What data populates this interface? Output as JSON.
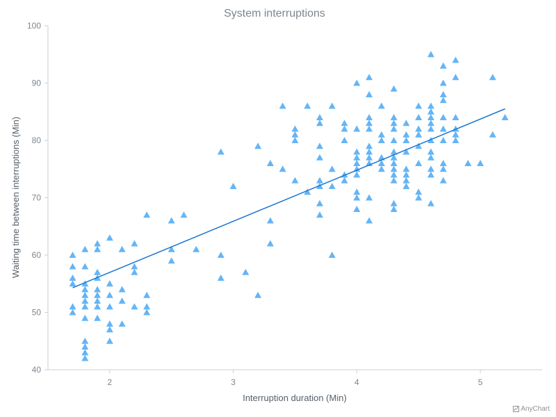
{
  "chart_data": {
    "type": "scatter",
    "title": "System interruptions",
    "xlabel": "Interruption duration (Min)",
    "ylabel": "Waiting time between interruptions (Min)",
    "xlim": [
      1.5,
      5.5
    ],
    "ylim": [
      40,
      100
    ],
    "xticks": [
      2,
      3,
      4,
      5
    ],
    "yticks": [
      40,
      50,
      60,
      70,
      80,
      90,
      100
    ],
    "marker_color": "#64b5f6",
    "trend_color": "#1976d2",
    "trend_line": {
      "x1": 1.7,
      "y1": 54.3,
      "x2": 5.2,
      "y2": 85.5
    },
    "points": [
      [
        1.7,
        60
      ],
      [
        1.7,
        58
      ],
      [
        1.7,
        56
      ],
      [
        1.7,
        55
      ],
      [
        1.7,
        51
      ],
      [
        1.7,
        50
      ],
      [
        1.8,
        61
      ],
      [
        1.8,
        58
      ],
      [
        1.8,
        55
      ],
      [
        1.8,
        54
      ],
      [
        1.8,
        53
      ],
      [
        1.8,
        52
      ],
      [
        1.8,
        51
      ],
      [
        1.8,
        49
      ],
      [
        1.8,
        45
      ],
      [
        1.8,
        44
      ],
      [
        1.8,
        43
      ],
      [
        1.8,
        42
      ],
      [
        1.9,
        62
      ],
      [
        1.9,
        61
      ],
      [
        1.9,
        57
      ],
      [
        1.9,
        56
      ],
      [
        1.9,
        54
      ],
      [
        1.9,
        53
      ],
      [
        1.9,
        52
      ],
      [
        1.9,
        51
      ],
      [
        1.9,
        49
      ],
      [
        2.0,
        63
      ],
      [
        2.0,
        55
      ],
      [
        2.0,
        53
      ],
      [
        2.0,
        51
      ],
      [
        2.0,
        48
      ],
      [
        2.0,
        47
      ],
      [
        2.0,
        45
      ],
      [
        2.1,
        61
      ],
      [
        2.1,
        54
      ],
      [
        2.1,
        52
      ],
      [
        2.1,
        48
      ],
      [
        2.2,
        62
      ],
      [
        2.2,
        58
      ],
      [
        2.2,
        57
      ],
      [
        2.2,
        51
      ],
      [
        2.3,
        67
      ],
      [
        2.3,
        53
      ],
      [
        2.3,
        51
      ],
      [
        2.3,
        50
      ],
      [
        2.5,
        66
      ],
      [
        2.5,
        61
      ],
      [
        2.5,
        59
      ],
      [
        2.6,
        67
      ],
      [
        2.7,
        61
      ],
      [
        2.9,
        78
      ],
      [
        2.9,
        60
      ],
      [
        2.9,
        56
      ],
      [
        3.0,
        72
      ],
      [
        3.1,
        57
      ],
      [
        3.2,
        79
      ],
      [
        3.2,
        53
      ],
      [
        3.3,
        76
      ],
      [
        3.3,
        66
      ],
      [
        3.3,
        62
      ],
      [
        3.4,
        86
      ],
      [
        3.4,
        75
      ],
      [
        3.5,
        82
      ],
      [
        3.5,
        81
      ],
      [
        3.5,
        80
      ],
      [
        3.5,
        73
      ],
      [
        3.6,
        86
      ],
      [
        3.6,
        71
      ],
      [
        3.7,
        84
      ],
      [
        3.7,
        83
      ],
      [
        3.7,
        79
      ],
      [
        3.7,
        77
      ],
      [
        3.7,
        73
      ],
      [
        3.7,
        72
      ],
      [
        3.7,
        69
      ],
      [
        3.7,
        67
      ],
      [
        3.8,
        86
      ],
      [
        3.8,
        75
      ],
      [
        3.8,
        72
      ],
      [
        3.8,
        60
      ],
      [
        3.9,
        83
      ],
      [
        3.9,
        82
      ],
      [
        3.9,
        80
      ],
      [
        3.9,
        74
      ],
      [
        3.9,
        73
      ],
      [
        4.0,
        90
      ],
      [
        4.0,
        82
      ],
      [
        4.0,
        78
      ],
      [
        4.0,
        77
      ],
      [
        4.0,
        76
      ],
      [
        4.0,
        75
      ],
      [
        4.0,
        74
      ],
      [
        4.0,
        71
      ],
      [
        4.0,
        70
      ],
      [
        4.0,
        68
      ],
      [
        4.1,
        91
      ],
      [
        4.1,
        88
      ],
      [
        4.1,
        84
      ],
      [
        4.1,
        83
      ],
      [
        4.1,
        82
      ],
      [
        4.1,
        79
      ],
      [
        4.1,
        78
      ],
      [
        4.1,
        77
      ],
      [
        4.1,
        76
      ],
      [
        4.1,
        70
      ],
      [
        4.1,
        66
      ],
      [
        4.2,
        86
      ],
      [
        4.2,
        81
      ],
      [
        4.2,
        80
      ],
      [
        4.2,
        77
      ],
      [
        4.2,
        76
      ],
      [
        4.2,
        75
      ],
      [
        4.3,
        89
      ],
      [
        4.3,
        84
      ],
      [
        4.3,
        83
      ],
      [
        4.3,
        82
      ],
      [
        4.3,
        80
      ],
      [
        4.3,
        78
      ],
      [
        4.3,
        77
      ],
      [
        4.3,
        76
      ],
      [
        4.3,
        75
      ],
      [
        4.3,
        74
      ],
      [
        4.3,
        73
      ],
      [
        4.3,
        69
      ],
      [
        4.3,
        68
      ],
      [
        4.4,
        83
      ],
      [
        4.4,
        81
      ],
      [
        4.4,
        80
      ],
      [
        4.4,
        78
      ],
      [
        4.4,
        75
      ],
      [
        4.4,
        74
      ],
      [
        4.4,
        73
      ],
      [
        4.4,
        72
      ],
      [
        4.5,
        86
      ],
      [
        4.5,
        84
      ],
      [
        4.5,
        82
      ],
      [
        4.5,
        81
      ],
      [
        4.5,
        79
      ],
      [
        4.5,
        76
      ],
      [
        4.5,
        71
      ],
      [
        4.5,
        70
      ],
      [
        4.6,
        95
      ],
      [
        4.6,
        86
      ],
      [
        4.6,
        85
      ],
      [
        4.6,
        84
      ],
      [
        4.6,
        83
      ],
      [
        4.6,
        82
      ],
      [
        4.6,
        80
      ],
      [
        4.6,
        78
      ],
      [
        4.6,
        77
      ],
      [
        4.6,
        75
      ],
      [
        4.6,
        74
      ],
      [
        4.6,
        69
      ],
      [
        4.7,
        93
      ],
      [
        4.7,
        90
      ],
      [
        4.7,
        88
      ],
      [
        4.7,
        87
      ],
      [
        4.7,
        84
      ],
      [
        4.7,
        82
      ],
      [
        4.7,
        80
      ],
      [
        4.7,
        76
      ],
      [
        4.7,
        75
      ],
      [
        4.7,
        73
      ],
      [
        4.8,
        94
      ],
      [
        4.8,
        91
      ],
      [
        4.8,
        84
      ],
      [
        4.8,
        82
      ],
      [
        4.8,
        81
      ],
      [
        4.8,
        80
      ],
      [
        4.9,
        76
      ],
      [
        5.0,
        76
      ],
      [
        5.1,
        91
      ],
      [
        5.1,
        81
      ],
      [
        5.2,
        84
      ]
    ]
  },
  "credits": {
    "label": "AnyChart",
    "icon": "chart-icon"
  }
}
